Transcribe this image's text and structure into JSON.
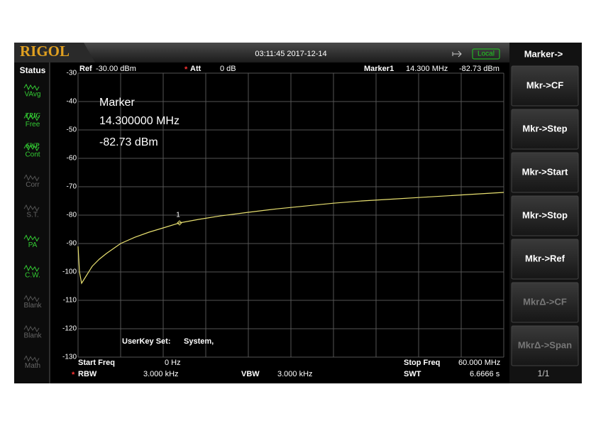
{
  "header": {
    "brand": "RIGOL",
    "datetime": "03:11:45 2017-12-14",
    "mode": "Local"
  },
  "status": {
    "title": "Status",
    "items": [
      {
        "label": "VAvg",
        "active": true
      },
      {
        "tag": "TRIG",
        "label": "Free",
        "active": true
      },
      {
        "tag": "SWP",
        "label": "Cont",
        "active": true
      },
      {
        "label": "Corr",
        "active": false
      },
      {
        "label": "S.T.",
        "active": false
      },
      {
        "label": "PA",
        "active": true
      },
      {
        "label": "C.W.",
        "active": true
      },
      {
        "label": "Blank",
        "active": false
      },
      {
        "label": "Blank",
        "active": false
      },
      {
        "label": "Math",
        "active": false
      }
    ]
  },
  "info": {
    "ref_label": "Ref",
    "ref_value": "-30.00 dBm",
    "att_flag": "*",
    "att_label": "Att",
    "att_value": "0 dB",
    "marker_label": "Marker1",
    "marker_freq": "14.300 MHz",
    "marker_level": "-82.73 dBm"
  },
  "readout": {
    "title": "Marker",
    "freq": "14.300000 MHz",
    "level": "-82.73 dBm"
  },
  "userkey": {
    "label": "UserKey Set:",
    "value": "System,"
  },
  "footer": {
    "start_label": "Start Freq",
    "start_value": "0 Hz",
    "stop_label": "Stop Freq",
    "stop_value": "60.000 MHz",
    "rbw_flag": "*",
    "rbw_label": "RBW",
    "rbw_value": "3.000 kHz",
    "vbw_label": "VBW",
    "vbw_value": "3.000 kHz",
    "swt_label": "SWT",
    "swt_value": "6.6666 s"
  },
  "trace": {
    "color": "#e8e070",
    "xlim": [
      0,
      60
    ],
    "ylim": [
      -130,
      -30
    ],
    "yticks": [
      -30,
      -40,
      -50,
      -60,
      -70,
      -80,
      -90,
      -100,
      -110,
      -120,
      -130
    ],
    "xgrid": [
      0,
      6,
      12,
      18,
      24,
      30,
      36,
      42,
      48,
      54,
      60
    ],
    "x": [
      0,
      0.2,
      0.5,
      1,
      2,
      3,
      4,
      6,
      8,
      10,
      12,
      14.3,
      17,
      20,
      24,
      28,
      32,
      36,
      40,
      44,
      48,
      52,
      56,
      60
    ],
    "values": [
      -91,
      -100,
      -104,
      -102,
      -98,
      -95.5,
      -93.5,
      -90,
      -87.8,
      -86,
      -84.5,
      -82.73,
      -81.5,
      -80.3,
      -79,
      -77.8,
      -76.8,
      -75.8,
      -75,
      -74.4,
      -73.8,
      -73.2,
      -72.6,
      -72
    ],
    "marker": {
      "label": "1",
      "x": 14.3,
      "y": -82.73
    }
  },
  "menu": {
    "title": "Marker->",
    "buttons": [
      {
        "label": "Mkr->CF",
        "enabled": true
      },
      {
        "label": "Mkr->Step",
        "enabled": true
      },
      {
        "label": "Mkr->Start",
        "enabled": true
      },
      {
        "label": "Mkr->Stop",
        "enabled": true
      },
      {
        "label": "Mkr->Ref",
        "enabled": true
      },
      {
        "label": "MkrΔ->CF",
        "enabled": false
      },
      {
        "label": "MkrΔ->Span",
        "enabled": false
      }
    ],
    "page": "1/1"
  }
}
